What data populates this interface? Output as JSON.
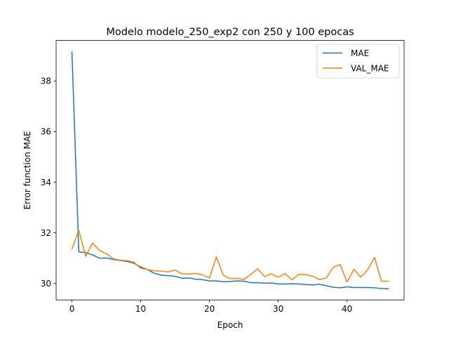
{
  "chart_data": {
    "type": "line",
    "title": "Modelo  modelo_250_exp2 con 250 y 100 epocas",
    "xlabel": "Epoch",
    "ylabel": "Error function MAE",
    "xlim": [
      -2.3,
      48.3
    ],
    "ylim": [
      29.35,
      39.6
    ],
    "xticks": [
      0,
      10,
      20,
      30,
      40
    ],
    "yticks": [
      30,
      32,
      34,
      36,
      38
    ],
    "grid": false,
    "legend_position": "top-right",
    "x": [
      0,
      1,
      2,
      3,
      4,
      5,
      6,
      7,
      8,
      9,
      10,
      11,
      12,
      13,
      14,
      15,
      16,
      17,
      18,
      19,
      20,
      21,
      22,
      23,
      24,
      25,
      26,
      27,
      28,
      29,
      30,
      31,
      32,
      33,
      34,
      35,
      36,
      37,
      38,
      39,
      40,
      41,
      42,
      43,
      44,
      45,
      46
    ],
    "series": [
      {
        "name": "MAE",
        "color": "#1f77b4",
        "values": [
          39.15,
          31.25,
          31.22,
          31.13,
          31.0,
          31.01,
          30.95,
          30.91,
          30.87,
          30.8,
          30.65,
          30.55,
          30.4,
          30.33,
          30.31,
          30.28,
          30.21,
          30.22,
          30.17,
          30.15,
          30.1,
          30.1,
          30.07,
          30.08,
          30.1,
          30.09,
          30.03,
          30.03,
          30.01,
          30.02,
          29.98,
          29.98,
          29.99,
          29.98,
          29.96,
          29.94,
          29.97,
          29.91,
          29.85,
          29.83,
          29.87,
          29.84,
          29.84,
          29.84,
          29.83,
          29.8,
          29.79
        ]
      },
      {
        "name": "VAL_MAE",
        "color": "#ff7f0e",
        "values": [
          31.36,
          32.1,
          31.07,
          31.6,
          31.3,
          31.18,
          30.98,
          30.92,
          30.9,
          30.84,
          30.6,
          30.55,
          30.5,
          30.49,
          30.46,
          30.53,
          30.38,
          30.37,
          30.4,
          30.34,
          30.22,
          31.05,
          30.33,
          30.19,
          30.2,
          30.16,
          30.36,
          30.58,
          30.27,
          30.38,
          30.25,
          30.39,
          30.14,
          30.36,
          30.35,
          30.29,
          30.15,
          30.22,
          30.64,
          30.75,
          30.06,
          30.56,
          30.25,
          30.54,
          31.03,
          30.09,
          30.09
        ]
      }
    ]
  }
}
